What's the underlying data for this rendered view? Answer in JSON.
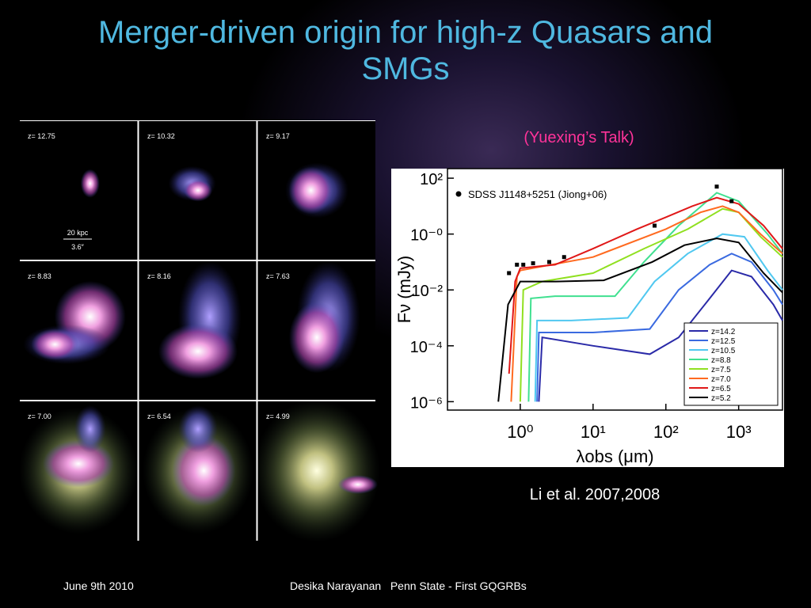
{
  "title": "Merger-driven origin for high-z Quasars and SMGs",
  "talk_note": "(Yuexing’s Talk)",
  "reference": "Li et al. 2007,2008",
  "footer": {
    "date": "June 9th 2010",
    "center": "Desika Narayanan   Penn State - First GQGRBs"
  },
  "panels": {
    "labels": [
      "z= 12.75",
      "z= 10.32",
      "z= 9.17",
      "z= 8.83",
      "z= 8.16",
      "z= 7.63",
      "z= 7.00",
      "z= 6.54",
      "z= 4.99"
    ],
    "scale_bar": "20 kpc",
    "scale_angle": "3.6″"
  },
  "chart_data": {
    "type": "line",
    "xlabel": "λobs (μm)",
    "ylabel": "Fν (mJy)",
    "log_x": true,
    "log_y": true,
    "xlim": [
      0.1,
      4000
    ],
    "ylim": [
      5e-07,
      220
    ],
    "xticks": [
      {
        "value": 1,
        "label": "10⁰"
      },
      {
        "value": 10,
        "label": "10¹"
      },
      {
        "value": 100,
        "label": "10²"
      },
      {
        "value": 1000,
        "label": "10³"
      }
    ],
    "yticks": [
      {
        "value": 100,
        "label": "10²"
      },
      {
        "value": 1,
        "label": "10⁻⁰"
      },
      {
        "value": 0.01,
        "label": "10⁻²"
      },
      {
        "value": 0.0001,
        "label": "10⁻⁴"
      },
      {
        "value": 1e-06,
        "label": "10⁻⁶"
      }
    ],
    "legend": "lower right",
    "points": {
      "name": "SDSS J1148+5251 (Jiong+06)",
      "color": "#000000",
      "x": [
        0.7,
        0.9,
        1.1,
        1.5,
        2.5,
        4,
        70,
        500,
        800
      ],
      "values": [
        0.04,
        0.08,
        0.08,
        0.09,
        0.1,
        0.15,
        2,
        50,
        15
      ]
    },
    "series": [
      {
        "name": "z=14.2",
        "color": "#2a2aa8",
        "x": [
          1.8,
          2,
          10,
          60,
          150,
          400,
          800,
          1500,
          3000,
          4000
        ],
        "values": [
          1e-06,
          0.0002,
          0.0001,
          5e-05,
          0.0002,
          0.005,
          0.05,
          0.03,
          0.003,
          0.0008
        ]
      },
      {
        "name": "z=12.5",
        "color": "#3a6ae0",
        "x": [
          1.7,
          1.8,
          10,
          60,
          150,
          400,
          800,
          1500,
          3000,
          4000
        ],
        "values": [
          1e-06,
          0.0003,
          0.0003,
          0.0004,
          0.01,
          0.08,
          0.2,
          0.1,
          0.01,
          0.003
        ]
      },
      {
        "name": "z=10.5",
        "color": "#50c8f0",
        "x": [
          1.6,
          1.7,
          5,
          30,
          70,
          200,
          600,
          1200,
          2500,
          4000
        ],
        "values": [
          1e-06,
          0.0008,
          0.0008,
          0.001,
          0.02,
          0.2,
          1,
          0.8,
          0.05,
          0.01
        ]
      },
      {
        "name": "z=8.8",
        "color": "#40e090",
        "x": [
          1.3,
          1.4,
          3,
          20,
          50,
          150,
          500,
          1000,
          2500,
          4000
        ],
        "values": [
          1e-06,
          0.005,
          0.006,
          0.006,
          0.1,
          2,
          30,
          15,
          1,
          0.2
        ]
      },
      {
        "name": "z=7.5",
        "color": "#90e020",
        "x": [
          1,
          1.1,
          2,
          10,
          50,
          200,
          600,
          1000,
          2000,
          4000
        ],
        "values": [
          1e-06,
          0.01,
          0.02,
          0.04,
          0.3,
          1.5,
          8,
          6,
          0.8,
          0.15
        ]
      },
      {
        "name": "z=7.0",
        "color": "#ff6a20",
        "x": [
          0.75,
          0.9,
          1,
          10,
          100,
          300,
          600,
          1000,
          2000,
          4000
        ],
        "values": [
          1e-06,
          0.03,
          0.05,
          0.15,
          1.5,
          6,
          10,
          6,
          1,
          0.2
        ]
      },
      {
        "name": "z=6.5",
        "color": "#e01818",
        "x": [
          0.7,
          0.85,
          1,
          3,
          10,
          40,
          100,
          230,
          500,
          1000,
          2200,
          4000
        ],
        "values": [
          1e-05,
          0.02,
          0.06,
          0.08,
          0.3,
          1.5,
          4,
          10,
          20,
          12,
          2,
          0.3
        ]
      },
      {
        "name": "z=5.2",
        "color": "#000000",
        "x": [
          0.5,
          0.68,
          1,
          3.1,
          14,
          65,
          180,
          500,
          1000,
          2200,
          4000
        ],
        "values": [
          1e-06,
          0.003,
          0.02,
          0.02,
          0.022,
          0.1,
          0.4,
          0.7,
          0.5,
          0.04,
          0.008
        ]
      }
    ]
  }
}
